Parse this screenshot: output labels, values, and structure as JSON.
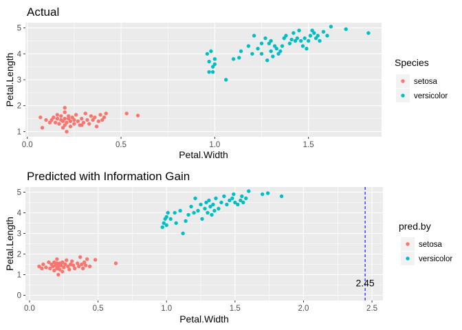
{
  "chart_data": [
    {
      "type": "scatter",
      "title": "Actual",
      "xlabel": "Petal.Width",
      "ylabel": "Petal.Length",
      "xlim": [
        -0.01,
        1.89
      ],
      "ylim": [
        0.8,
        5.2
      ],
      "xticks": [
        0.0,
        0.5,
        1.0,
        1.5
      ],
      "xtick_labels": [
        "0.0",
        "0.5",
        "1.0",
        "1.5"
      ],
      "yticks": [
        1,
        2,
        3,
        4,
        5
      ],
      "ytick_labels": [
        "1",
        "2",
        "3",
        "4",
        "5"
      ],
      "grid": true,
      "legend": {
        "title": "Species",
        "position": "right"
      },
      "series": [
        {
          "name": "setosa",
          "color": "#F8766D",
          "points": [
            [
              0.07,
              1.55
            ],
            [
              0.08,
              1.15
            ],
            [
              0.1,
              1.45
            ],
            [
              0.12,
              1.35
            ],
            [
              0.13,
              1.45
            ],
            [
              0.14,
              1.55
            ],
            [
              0.15,
              1.35
            ],
            [
              0.16,
              1.65
            ],
            [
              0.17,
              1.3
            ],
            [
              0.18,
              1.45
            ],
            [
              0.18,
              1.6
            ],
            [
              0.19,
              1.4
            ],
            [
              0.19,
              1.15
            ],
            [
              0.2,
              1.25
            ],
            [
              0.2,
              1.5
            ],
            [
              0.2,
              1.75
            ],
            [
              0.2,
              1.92
            ],
            [
              0.21,
              1.0
            ],
            [
              0.21,
              1.35
            ],
            [
              0.22,
              1.5
            ],
            [
              0.22,
              1.6
            ],
            [
              0.23,
              1.4
            ],
            [
              0.23,
              1.2
            ],
            [
              0.24,
              1.55
            ],
            [
              0.25,
              1.3
            ],
            [
              0.25,
              1.45
            ],
            [
              0.26,
              1.65
            ],
            [
              0.27,
              1.4
            ],
            [
              0.28,
              1.25
            ],
            [
              0.29,
              1.5
            ],
            [
              0.3,
              1.35
            ],
            [
              0.31,
              1.7
            ],
            [
              0.32,
              1.45
            ],
            [
              0.33,
              1.3
            ],
            [
              0.34,
              1.6
            ],
            [
              0.35,
              1.45
            ],
            [
              0.36,
              1.55
            ],
            [
              0.37,
              1.2
            ],
            [
              0.38,
              1.4
            ],
            [
              0.39,
              1.65
            ],
            [
              0.4,
              1.45
            ],
            [
              0.41,
              1.55
            ],
            [
              0.42,
              1.7
            ],
            [
              0.29,
              1.25
            ],
            [
              0.16,
              1.5
            ],
            [
              0.53,
              1.7
            ],
            [
              0.59,
              1.62
            ]
          ]
        },
        {
          "name": "versicolor",
          "color": "#00BFC4",
          "points": [
            [
              0.96,
              4.0
            ],
            [
              0.97,
              3.7
            ],
            [
              0.98,
              4.1
            ],
            [
              0.99,
              3.5
            ],
            [
              0.97,
              3.3
            ],
            [
              0.99,
              3.3
            ],
            [
              1.0,
              3.6
            ],
            [
              1.0,
              3.8
            ],
            [
              1.06,
              3.0
            ],
            [
              1.1,
              3.8
            ],
            [
              1.13,
              3.85
            ],
            [
              1.14,
              4.1
            ],
            [
              1.18,
              4.3
            ],
            [
              1.2,
              4.0
            ],
            [
              1.21,
              4.7
            ],
            [
              1.23,
              4.2
            ],
            [
              1.25,
              4.4
            ],
            [
              1.25,
              4.0
            ],
            [
              1.27,
              4.6
            ],
            [
              1.28,
              3.75
            ],
            [
              1.29,
              4.4
            ],
            [
              1.3,
              4.1
            ],
            [
              1.3,
              4.5
            ],
            [
              1.31,
              3.9
            ],
            [
              1.32,
              4.3
            ],
            [
              1.33,
              4.2
            ],
            [
              1.34,
              4.0
            ],
            [
              1.35,
              4.1
            ],
            [
              1.36,
              4.3
            ],
            [
              1.37,
              4.6
            ],
            [
              1.38,
              4.7
            ],
            [
              1.4,
              4.4
            ],
            [
              1.41,
              4.55
            ],
            [
              1.42,
              4.8
            ],
            [
              1.43,
              4.5
            ],
            [
              1.44,
              4.6
            ],
            [
              1.45,
              4.9
            ],
            [
              1.46,
              4.5
            ],
            [
              1.47,
              4.3
            ],
            [
              1.48,
              4.6
            ],
            [
              1.49,
              4.2
            ],
            [
              1.5,
              4.5
            ],
            [
              1.51,
              4.7
            ],
            [
              1.52,
              4.9
            ],
            [
              1.53,
              4.8
            ],
            [
              1.54,
              4.6
            ],
            [
              1.55,
              4.7
            ],
            [
              1.56,
              4.5
            ],
            [
              1.58,
              4.85
            ],
            [
              1.6,
              4.7
            ],
            [
              1.62,
              5.05
            ],
            [
              1.7,
              4.95
            ],
            [
              1.82,
              4.8
            ]
          ]
        }
      ]
    },
    {
      "type": "scatter",
      "title": "Predicted with Information Gain",
      "xlabel": "Petal.Width",
      "ylabel": "Petal.Length",
      "xlim": [
        -0.03,
        2.58
      ],
      "ylim": [
        -0.25,
        5.25
      ],
      "xticks": [
        0.0,
        0.5,
        1.0,
        1.5,
        2.0,
        2.5
      ],
      "xtick_labels": [
        "0.0",
        "0.5",
        "1.0",
        "1.5",
        "2.0",
        "2.5"
      ],
      "yticks": [
        0,
        1,
        2,
        3,
        4,
        5
      ],
      "ytick_labels": [
        "0",
        "1",
        "2",
        "3",
        "4",
        "5"
      ],
      "grid": true,
      "legend": {
        "title": "pred.by",
        "position": "right"
      },
      "vline": {
        "x": 2.45,
        "color": "#0000FF",
        "style": "dashed"
      },
      "annotation": {
        "text": "2.45",
        "x": 2.45,
        "y": 0.6
      },
      "series": [
        {
          "name": "setosa",
          "color": "#F8766D",
          "points": [
            [
              0.07,
              1.4
            ],
            [
              0.09,
              1.3
            ],
            [
              0.1,
              1.5
            ],
            [
              0.12,
              1.35
            ],
            [
              0.14,
              1.6
            ],
            [
              0.15,
              1.3
            ],
            [
              0.16,
              1.5
            ],
            [
              0.17,
              1.4
            ],
            [
              0.18,
              1.2
            ],
            [
              0.18,
              1.6
            ],
            [
              0.19,
              1.45
            ],
            [
              0.2,
              1.3
            ],
            [
              0.2,
              1.55
            ],
            [
              0.2,
              1.75
            ],
            [
              0.21,
              1.0
            ],
            [
              0.21,
              1.4
            ],
            [
              0.22,
              1.55
            ],
            [
              0.22,
              1.25
            ],
            [
              0.23,
              1.45
            ],
            [
              0.24,
              1.6
            ],
            [
              0.24,
              1.15
            ],
            [
              0.25,
              1.35
            ],
            [
              0.26,
              1.5
            ],
            [
              0.27,
              1.7
            ],
            [
              0.28,
              1.4
            ],
            [
              0.29,
              1.25
            ],
            [
              0.3,
              1.5
            ],
            [
              0.31,
              1.65
            ],
            [
              0.32,
              1.45
            ],
            [
              0.33,
              1.3
            ],
            [
              0.35,
              1.55
            ],
            [
              0.36,
              1.4
            ],
            [
              0.37,
              1.85
            ],
            [
              0.38,
              1.5
            ],
            [
              0.39,
              1.3
            ],
            [
              0.4,
              1.6
            ],
            [
              0.41,
              1.45
            ],
            [
              0.42,
              1.75
            ],
            [
              0.44,
              1.4
            ],
            [
              0.48,
              1.72
            ],
            [
              0.63,
              1.55
            ]
          ]
        },
        {
          "name": "versicolor",
          "color": "#00BFC4",
          "points": [
            [
              0.97,
              3.3
            ],
            [
              0.98,
              3.5
            ],
            [
              0.99,
              3.7
            ],
            [
              1.0,
              3.8
            ],
            [
              1.0,
              3.4
            ],
            [
              1.01,
              4.0
            ],
            [
              1.03,
              3.7
            ],
            [
              1.06,
              4.0
            ],
            [
              1.07,
              3.5
            ],
            [
              1.1,
              4.1
            ],
            [
              1.12,
              3.0
            ],
            [
              1.14,
              3.6
            ],
            [
              1.16,
              3.9
            ],
            [
              1.18,
              4.3
            ],
            [
              1.2,
              4.0
            ],
            [
              1.21,
              4.7
            ],
            [
              1.23,
              4.1
            ],
            [
              1.25,
              4.4
            ],
            [
              1.26,
              3.7
            ],
            [
              1.28,
              4.2
            ],
            [
              1.29,
              4.5
            ],
            [
              1.3,
              4.0
            ],
            [
              1.31,
              4.6
            ],
            [
              1.32,
              4.3
            ],
            [
              1.33,
              3.9
            ],
            [
              1.34,
              4.4
            ],
            [
              1.35,
              4.1
            ],
            [
              1.36,
              4.7
            ],
            [
              1.38,
              4.2
            ],
            [
              1.4,
              4.5
            ],
            [
              1.42,
              4.8
            ],
            [
              1.44,
              4.4
            ],
            [
              1.46,
              4.6
            ],
            [
              1.48,
              4.7
            ],
            [
              1.49,
              4.9
            ],
            [
              1.5,
              4.5
            ],
            [
              1.52,
              4.4
            ],
            [
              1.54,
              4.6
            ],
            [
              1.55,
              4.8
            ],
            [
              1.56,
              4.5
            ],
            [
              1.58,
              4.7
            ],
            [
              1.6,
              5.05
            ],
            [
              1.7,
              4.9
            ],
            [
              1.74,
              4.95
            ],
            [
              1.84,
              4.8
            ]
          ]
        }
      ]
    }
  ]
}
